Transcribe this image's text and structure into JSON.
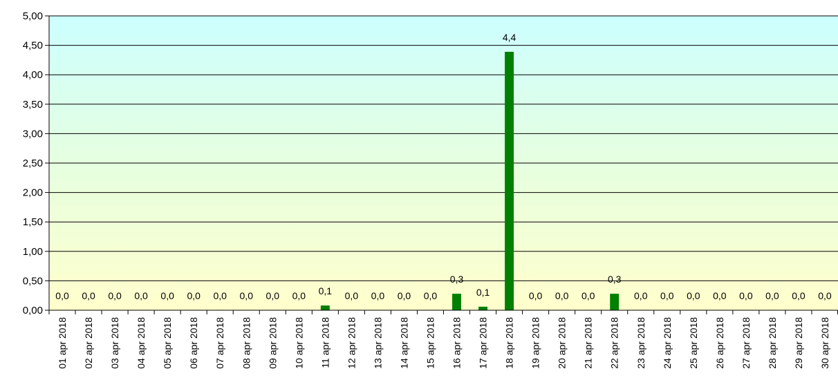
{
  "chart_data": {
    "type": "bar",
    "categories": [
      "01 apr 2018",
      "02 apr 2018",
      "03 apr 2018",
      "04 apr 2018",
      "05 apr 2018",
      "06 apr 2018",
      "07 apr 2018",
      "08 apr 2018",
      "09 apr 2018",
      "10 apr 2018",
      "11 apr 2018",
      "12 apr 2018",
      "13 apr 2018",
      "14 apr 2018",
      "15 apr 2018",
      "16 apr 2018",
      "17 apr 2018",
      "18 apr 2018",
      "19 apr 2018",
      "20 apr 2018",
      "21 apr 2018",
      "22 apr 2018",
      "23 apr 2018",
      "24 apr 2018",
      "25 apr 2018",
      "26 apr 2018",
      "27 apr 2018",
      "28 apr 2018",
      "29 apr 2018",
      "30 apr 2018"
    ],
    "values": [
      0,
      0,
      0,
      0,
      0,
      0,
      0,
      0,
      0,
      0,
      0.08,
      0,
      0,
      0,
      0,
      0.28,
      0.06,
      4.39,
      0,
      0,
      0,
      0.28,
      0,
      0,
      0,
      0,
      0,
      0,
      0,
      0
    ],
    "data_labels": [
      "0,0",
      "0,0",
      "0,0",
      "0,0",
      "0,0",
      "0,0",
      "0,0",
      "0,0",
      "0,0",
      "0,0",
      "0,1",
      "0,0",
      "0,0",
      "0,0",
      "0,0",
      "0,3",
      "0,1",
      "4,4",
      "0,0",
      "0,0",
      "0,0",
      "0,3",
      "0,0",
      "0,0",
      "0,0",
      "0,0",
      "0,0",
      "0,0",
      "0,0",
      "0,0"
    ],
    "y_ticks": [
      "0,00",
      "0,50",
      "1,00",
      "1,50",
      "2,00",
      "2,50",
      "3,00",
      "3,50",
      "4,00",
      "4,50",
      "5,00"
    ],
    "ylim": [
      0,
      5
    ],
    "grid": true,
    "legend": "none",
    "colors": {
      "bar": "#008000",
      "bg_top": "#ccffff",
      "bg_mid": "#e6ffe0",
      "bg_bottom": "#ffffcc",
      "grid": "#000000"
    }
  }
}
